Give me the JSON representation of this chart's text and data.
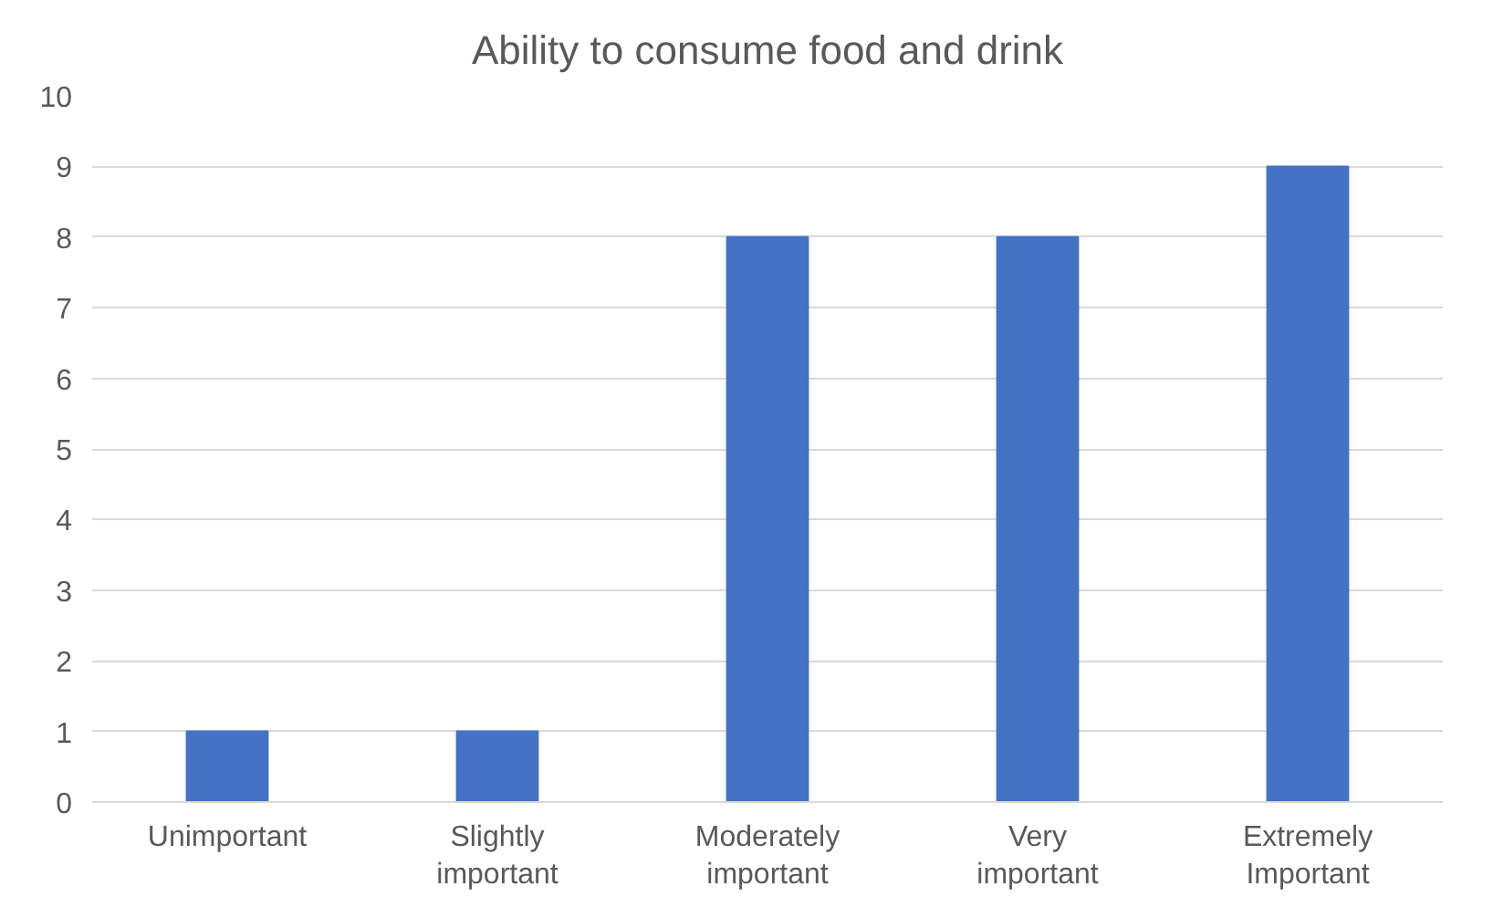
{
  "chart_data": {
    "type": "bar",
    "title": "Ability to consume food and drink",
    "categories": [
      "Unimportant",
      "Slightly important",
      "Moderately important",
      "Very important",
      "Extremely Important"
    ],
    "values": [
      1,
      1,
      8,
      8,
      9
    ],
    "color": "#4472c4",
    "ylim": [
      0,
      10
    ],
    "yticks": [
      0,
      1,
      2,
      3,
      4,
      5,
      6,
      7,
      8,
      9,
      10
    ],
    "grid": "y"
  }
}
